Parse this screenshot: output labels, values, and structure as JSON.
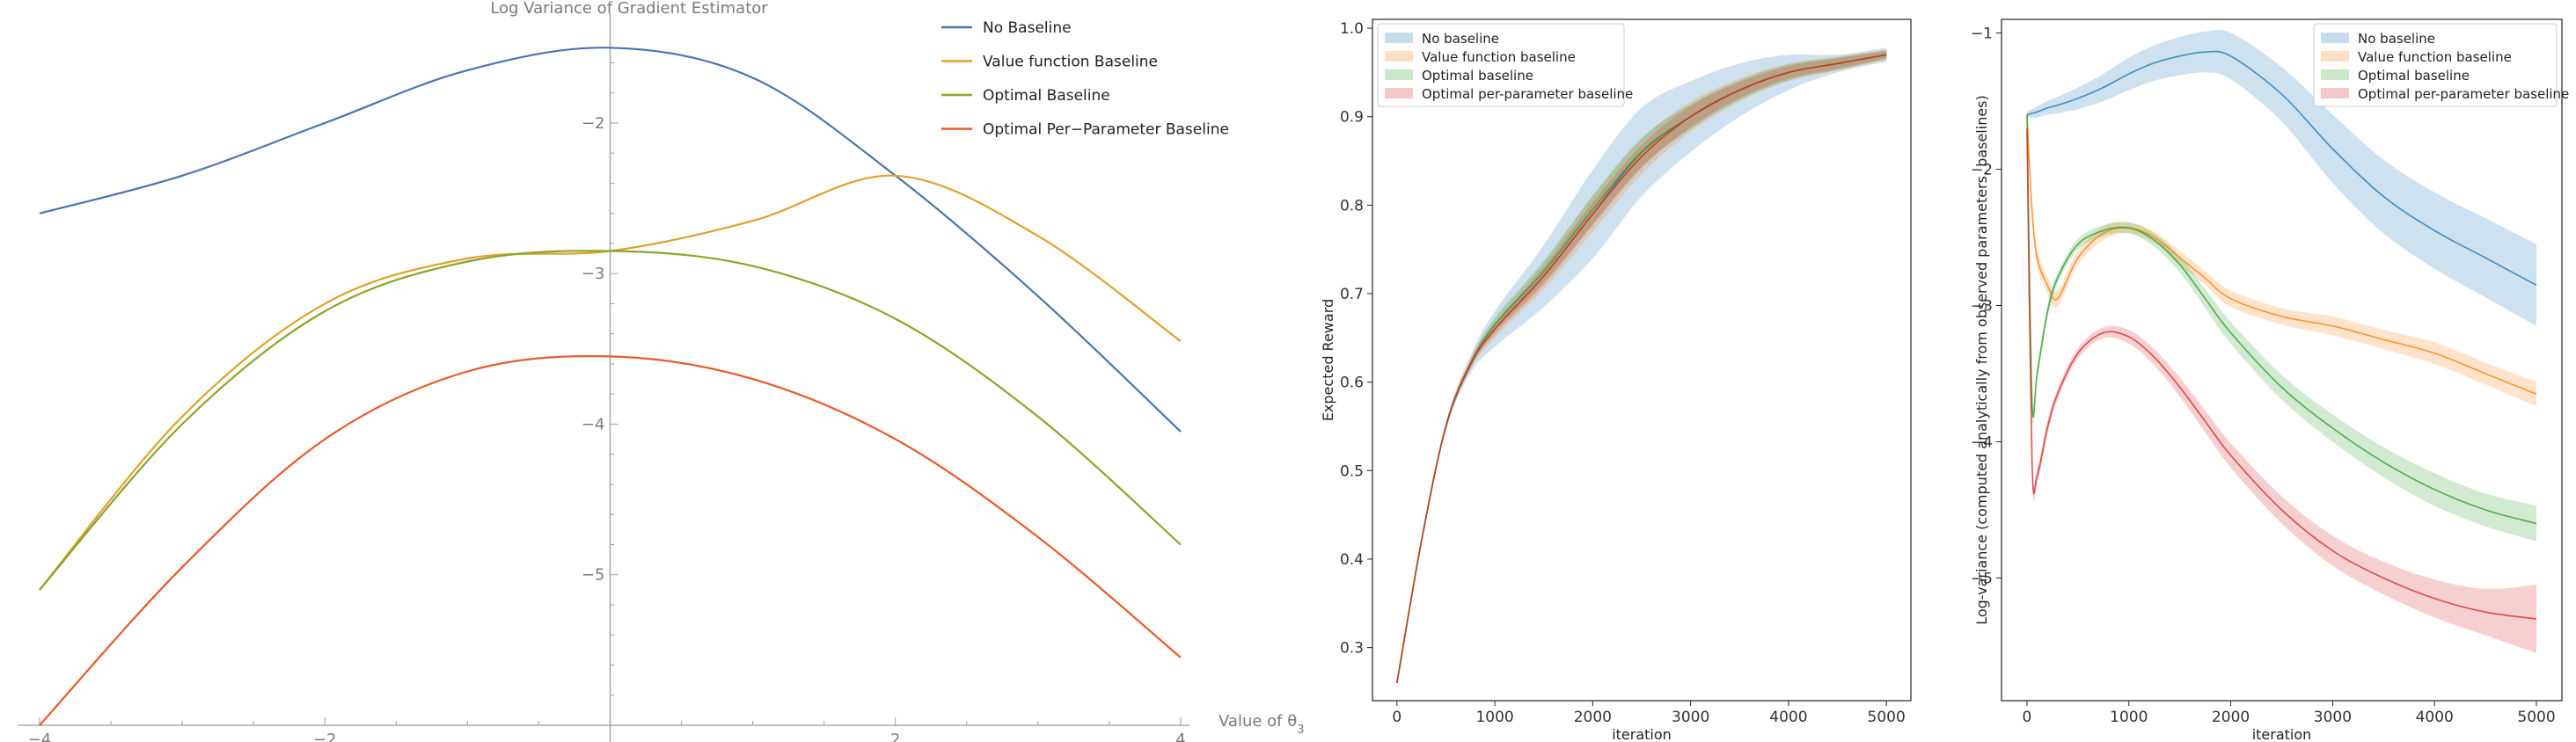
{
  "chart_data": [
    {
      "type": "line",
      "title": "Log Variance of Gradient Estimator",
      "xlabel": "Value of θ",
      "xlabel_sub": "3",
      "ylabel": "",
      "xlim": [
        -4,
        4
      ],
      "ylim": [
        -6.0,
        -1.3
      ],
      "x_ticks": [
        -4,
        -2,
        2,
        4
      ],
      "x_tick_labels": [
        "−4",
        "−2",
        "2",
        "4"
      ],
      "y_ticks": [
        -2,
        -3,
        -4,
        -5
      ],
      "y_tick_labels": [
        "−2",
        "−3",
        "−4",
        "−5"
      ],
      "legend_position": "top-right",
      "x": [
        -4,
        -3,
        -2,
        -1,
        0,
        1,
        2,
        3,
        4
      ],
      "series": [
        {
          "name": "No Baseline",
          "color": "#4a74b0",
          "values": [
            -2.6,
            -2.35,
            -2.0,
            -1.65,
            -1.5,
            -1.7,
            -2.35,
            -3.15,
            -4.05
          ]
        },
        {
          "name": "Value function Baseline",
          "color": "#e0a12b",
          "values": [
            -5.1,
            -3.95,
            -3.2,
            -2.9,
            -2.85,
            -2.65,
            -2.35,
            -2.75,
            -3.45
          ]
        },
        {
          "name": "Optimal Baseline",
          "color": "#8aa52a",
          "values": [
            -5.1,
            -4.0,
            -3.25,
            -2.92,
            -2.85,
            -2.95,
            -3.3,
            -3.95,
            -4.8
          ]
        },
        {
          "name": "Optimal Per−Parameter Baseline",
          "color": "#e85a2a",
          "values": [
            -6.0,
            -4.95,
            -4.1,
            -3.65,
            -3.55,
            -3.7,
            -4.1,
            -4.75,
            -5.55
          ]
        }
      ]
    },
    {
      "type": "line",
      "title": "",
      "xlabel": "iteration",
      "ylabel": "Expected Reward",
      "xlim": [
        -250,
        5250
      ],
      "ylim": [
        0.24,
        1.01
      ],
      "x_ticks": [
        0,
        1000,
        2000,
        3000,
        4000,
        5000
      ],
      "x_tick_labels": [
        "0",
        "1000",
        "2000",
        "3000",
        "4000",
        "5000"
      ],
      "y_ticks": [
        0.3,
        0.4,
        0.5,
        0.6,
        0.7,
        0.8,
        0.9,
        1.0
      ],
      "y_tick_labels": [
        "0.3",
        "0.4",
        "0.5",
        "0.6",
        "0.7",
        "0.8",
        "0.9",
        "1.0"
      ],
      "legend_position": "top-left",
      "x": [
        0,
        250,
        500,
        750,
        1000,
        1500,
        2000,
        2500,
        3000,
        3500,
        4000,
        4500,
        5000
      ],
      "series": [
        {
          "name": "No baseline",
          "color": "#1f77b4",
          "values": [
            0.26,
            0.42,
            0.55,
            0.62,
            0.66,
            0.72,
            0.79,
            0.86,
            0.9,
            0.93,
            0.95,
            0.96,
            0.97
          ],
          "band": [
            0,
            0,
            0.005,
            0.01,
            0.02,
            0.035,
            0.05,
            0.05,
            0.04,
            0.03,
            0.02,
            0.01,
            0.008
          ]
        },
        {
          "name": "Value function baseline",
          "color": "#ff7f0e",
          "values": [
            0.26,
            0.42,
            0.55,
            0.62,
            0.66,
            0.72,
            0.79,
            0.855,
            0.9,
            0.93,
            0.95,
            0.96,
            0.97
          ],
          "band": [
            0,
            0,
            0.003,
            0.006,
            0.01,
            0.015,
            0.02,
            0.02,
            0.017,
            0.013,
            0.01,
            0.008,
            0.006
          ]
        },
        {
          "name": "Optimal baseline",
          "color": "#2ca02c",
          "values": [
            0.26,
            0.42,
            0.55,
            0.62,
            0.665,
            0.725,
            0.795,
            0.86,
            0.9,
            0.93,
            0.95,
            0.96,
            0.97
          ],
          "band": [
            0,
            0,
            0.003,
            0.005,
            0.008,
            0.012,
            0.016,
            0.016,
            0.014,
            0.011,
            0.009,
            0.007,
            0.005
          ]
        },
        {
          "name": "Optimal per-parameter baseline",
          "color": "#d62728",
          "values": [
            0.26,
            0.42,
            0.55,
            0.62,
            0.66,
            0.72,
            0.79,
            0.855,
            0.9,
            0.93,
            0.95,
            0.96,
            0.97
          ],
          "band": [
            0,
            0,
            0.002,
            0.004,
            0.006,
            0.01,
            0.013,
            0.013,
            0.012,
            0.009,
            0.007,
            0.006,
            0.004
          ]
        }
      ]
    },
    {
      "type": "line",
      "title": "",
      "xlabel": "iteration",
      "ylabel": "Log-variance (computed analytically from observed parameters, baselines)",
      "xlim": [
        -250,
        5250
      ],
      "ylim": [
        -5.9,
        -0.9
      ],
      "x_ticks": [
        0,
        1000,
        2000,
        3000,
        4000,
        5000
      ],
      "x_tick_labels": [
        "0",
        "1000",
        "2000",
        "3000",
        "4000",
        "5000"
      ],
      "y_ticks": [
        -1,
        -2,
        -3,
        -4,
        -5
      ],
      "y_tick_labels": [
        "−1",
        "−2",
        "−3",
        "−4",
        "−5"
      ],
      "legend_position": "top-right",
      "x": [
        0,
        50,
        100,
        200,
        300,
        500,
        750,
        1000,
        1250,
        1500,
        1750,
        2000,
        2500,
        3000,
        3500,
        4000,
        4500,
        5000
      ],
      "series": [
        {
          "name": "No baseline",
          "color": "#1f77b4",
          "values": [
            -1.6,
            -1.59,
            -1.58,
            -1.55,
            -1.53,
            -1.48,
            -1.4,
            -1.3,
            -1.22,
            -1.17,
            -1.14,
            -1.17,
            -1.45,
            -1.85,
            -2.2,
            -2.45,
            -2.65,
            -2.85
          ],
          "band": [
            0.02,
            0.03,
            0.04,
            0.05,
            0.06,
            0.08,
            0.1,
            0.12,
            0.13,
            0.14,
            0.15,
            0.17,
            0.2,
            0.25,
            0.27,
            0.28,
            0.29,
            0.3
          ]
        },
        {
          "name": "Value function baseline",
          "color": "#ff7f0e",
          "values": [
            -1.6,
            -2.3,
            -2.65,
            -2.85,
            -2.95,
            -2.65,
            -2.47,
            -2.43,
            -2.5,
            -2.65,
            -2.8,
            -2.95,
            -3.08,
            -3.15,
            -3.25,
            -3.35,
            -3.5,
            -3.65
          ],
          "band": [
            0.02,
            0.05,
            0.06,
            0.06,
            0.06,
            0.05,
            0.05,
            0.04,
            0.04,
            0.05,
            0.05,
            0.06,
            0.06,
            0.07,
            0.07,
            0.08,
            0.08,
            0.09
          ]
        },
        {
          "name": "Optimal baseline",
          "color": "#2ca02c",
          "values": [
            -1.6,
            -3.7,
            -3.5,
            -3.05,
            -2.8,
            -2.55,
            -2.45,
            -2.43,
            -2.52,
            -2.7,
            -2.95,
            -3.2,
            -3.6,
            -3.9,
            -4.15,
            -4.35,
            -4.5,
            -4.6
          ],
          "band": [
            0.02,
            0.05,
            0.05,
            0.05,
            0.04,
            0.04,
            0.04,
            0.04,
            0.05,
            0.06,
            0.07,
            0.08,
            0.09,
            0.1,
            0.11,
            0.12,
            0.12,
            0.13
          ]
        },
        {
          "name": "Optimal per-parameter baseline",
          "color": "#d62728",
          "values": [
            -1.7,
            -4.15,
            -4.25,
            -3.9,
            -3.65,
            -3.35,
            -3.2,
            -3.23,
            -3.38,
            -3.6,
            -3.85,
            -4.1,
            -4.5,
            -4.8,
            -5.0,
            -5.15,
            -5.25,
            -5.3
          ],
          "band": [
            0.02,
            0.05,
            0.06,
            0.05,
            0.04,
            0.04,
            0.04,
            0.05,
            0.06,
            0.07,
            0.08,
            0.09,
            0.1,
            0.11,
            0.12,
            0.14,
            0.17,
            0.25
          ]
        }
      ]
    }
  ]
}
